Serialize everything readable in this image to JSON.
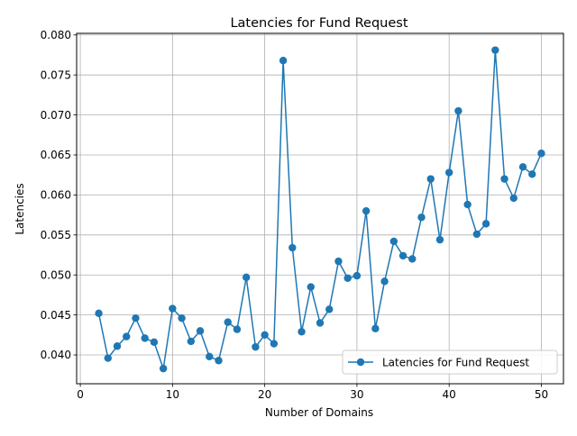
{
  "chart_data": {
    "type": "line",
    "title": "Latencies for Fund Request",
    "xlabel": "Number of Domains",
    "ylabel": "Latencies",
    "xlim": [
      -0.4,
      52.4
    ],
    "ylim": [
      0.0364,
      0.0802
    ],
    "x_ticks": [
      0,
      10,
      20,
      30,
      40,
      50
    ],
    "y_ticks": [
      0.04,
      0.045,
      0.05,
      0.055,
      0.06,
      0.065,
      0.07,
      0.075,
      0.08
    ],
    "grid": true,
    "legend_position": "lower right",
    "series": [
      {
        "name": "Latencies for Fund Request",
        "color": "#1f77b4",
        "marker": "circle",
        "x": [
          2,
          3,
          4,
          5,
          6,
          7,
          8,
          9,
          10,
          11,
          12,
          13,
          14,
          15,
          16,
          17,
          18,
          19,
          20,
          21,
          22,
          23,
          24,
          25,
          26,
          27,
          28,
          29,
          30,
          31,
          32,
          33,
          34,
          35,
          36,
          37,
          38,
          39,
          40,
          41,
          42,
          43,
          44,
          45,
          46,
          47,
          48,
          49,
          50
        ],
        "y": [
          0.0452,
          0.0396,
          0.0411,
          0.0423,
          0.0446,
          0.0421,
          0.0416,
          0.0383,
          0.0458,
          0.0446,
          0.0417,
          0.043,
          0.0398,
          0.0393,
          0.0441,
          0.0432,
          0.0497,
          0.041,
          0.0425,
          0.0414,
          0.0768,
          0.0534,
          0.0429,
          0.0485,
          0.044,
          0.0457,
          0.0517,
          0.0496,
          0.0499,
          0.058,
          0.0433,
          0.0492,
          0.0542,
          0.0524,
          0.052,
          0.0572,
          0.062,
          0.0544,
          0.0628,
          0.0705,
          0.0588,
          0.0551,
          0.0564,
          0.0781,
          0.062,
          0.0596,
          0.0635,
          0.0626,
          0.0652
        ]
      }
    ]
  }
}
